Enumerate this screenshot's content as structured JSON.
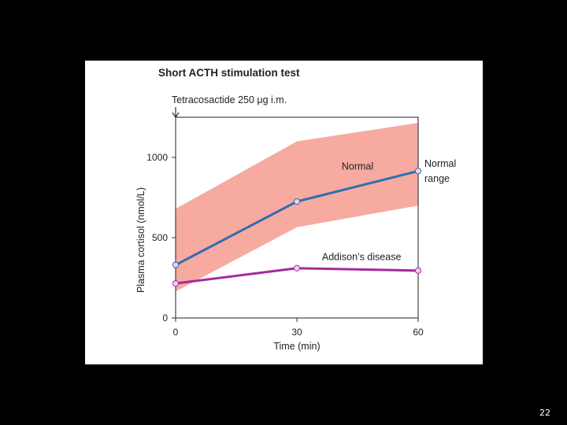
{
  "slide": {
    "number": "22"
  },
  "colors": {
    "background": "#000000",
    "panel": "#ffffff",
    "normal_range_fill": "#f6aaa0",
    "normal_line": "#2f6db0",
    "addison_line": "#a52a9e",
    "marker_fill": "#e9d3ef",
    "axis": "#333333"
  },
  "chart_data": {
    "type": "line",
    "title": "Short ACTH stimulation test",
    "annotation": "Tetracosactide 250 μg i.m.",
    "xlabel": "Time (min)",
    "ylabel": "Plasma cortisol (nmol/L)",
    "x": [
      0,
      30,
      60
    ],
    "xticks": [
      "0",
      "30",
      "60"
    ],
    "yticks": [
      "0",
      "500",
      "1000"
    ],
    "xlim": [
      0,
      60
    ],
    "ylim": [
      0,
      1250
    ],
    "series": [
      {
        "name": "Normal",
        "values": [
          330,
          725,
          915
        ]
      },
      {
        "name": "Addison’s disease",
        "values": [
          215,
          310,
          295
        ]
      }
    ],
    "band": {
      "name": "Normal range",
      "lower": [
        165,
        565,
        700
      ],
      "upper": [
        680,
        1100,
        1215
      ]
    },
    "labels": {
      "normal": "Normal",
      "normal_range_line1": "Normal",
      "normal_range_line2": "range",
      "addison": "Addison’s disease"
    }
  }
}
